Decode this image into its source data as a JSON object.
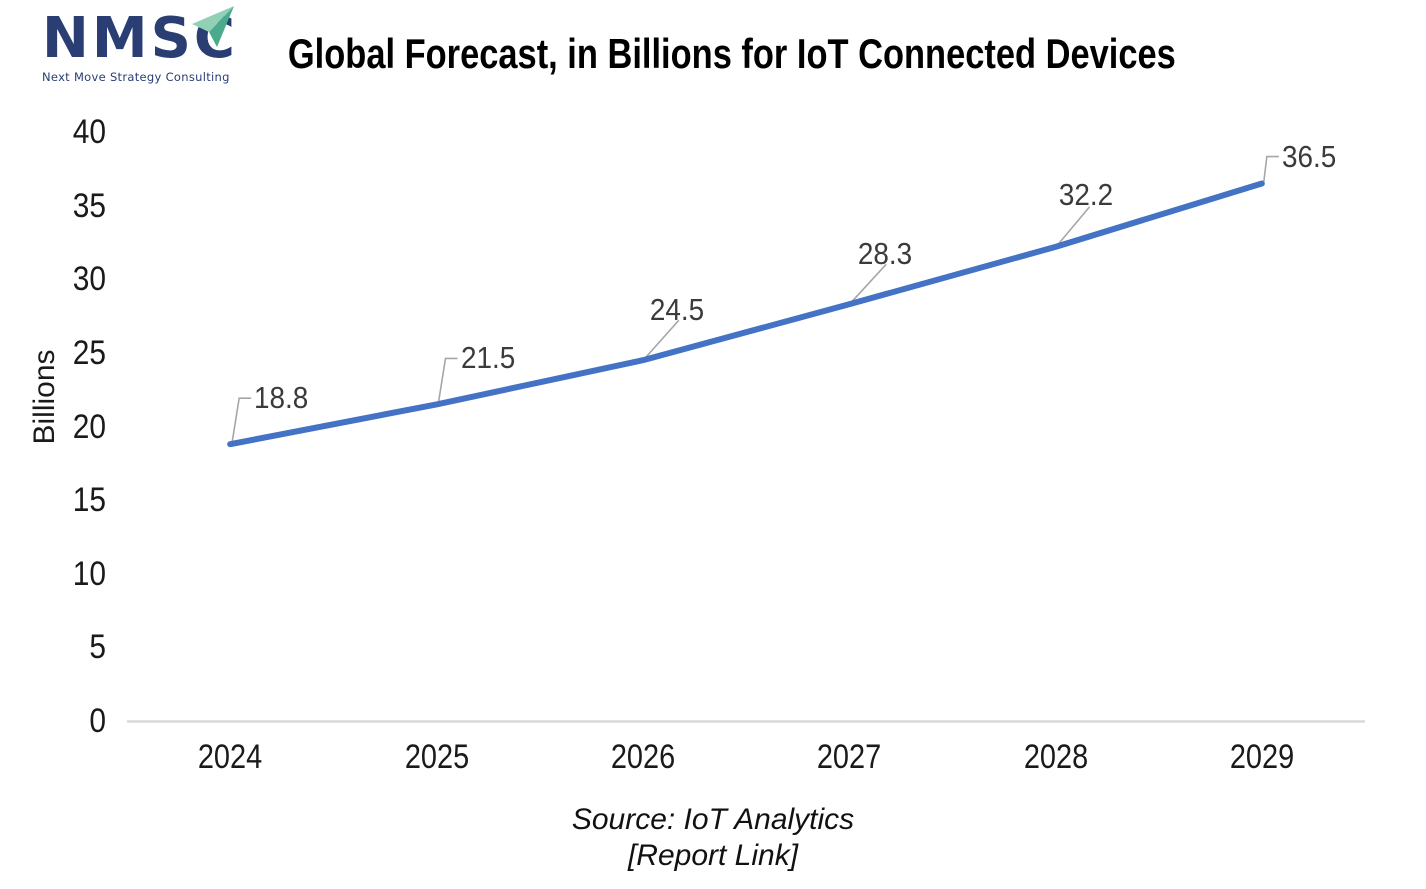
{
  "logo": {
    "acronym": "NMSC",
    "tagline": "Next Move Strategy Consulting"
  },
  "title": "Global Forecast, in Billions for IoT Connected Devices",
  "source": {
    "line1": "Source: IoT Analytics",
    "line2": "[Report Link]"
  },
  "colors": {
    "line": "#4472C4",
    "axis": "#D9D9D9",
    "leader": "#A6A6A6",
    "logo_navy": "#2A3E73",
    "triangle_light": "#90D1B5",
    "triangle_dark": "#4BAA8E",
    "tick_text": "#1a1a1a",
    "label_text": "#3b3b3b"
  },
  "chart_data": {
    "type": "line",
    "title": "Global Forecast, in Billions for IoT Connected Devices",
    "categories": [
      "2024",
      "2025",
      "2026",
      "2027",
      "2028",
      "2029"
    ],
    "values": [
      18.8,
      21.5,
      24.5,
      28.3,
      32.2,
      36.5
    ],
    "labels": [
      "18.8",
      "21.5",
      "24.5",
      "28.3",
      "32.2",
      "36.5"
    ],
    "xlabel": "",
    "ylabel": "Billions",
    "ylim": [
      0,
      40
    ],
    "yticks": [
      0,
      5,
      10,
      15,
      20,
      25,
      30,
      35,
      40
    ],
    "grid": false,
    "legend": false,
    "annotations": [
      "Source: IoT Analytics",
      "[Report Link]"
    ]
  }
}
